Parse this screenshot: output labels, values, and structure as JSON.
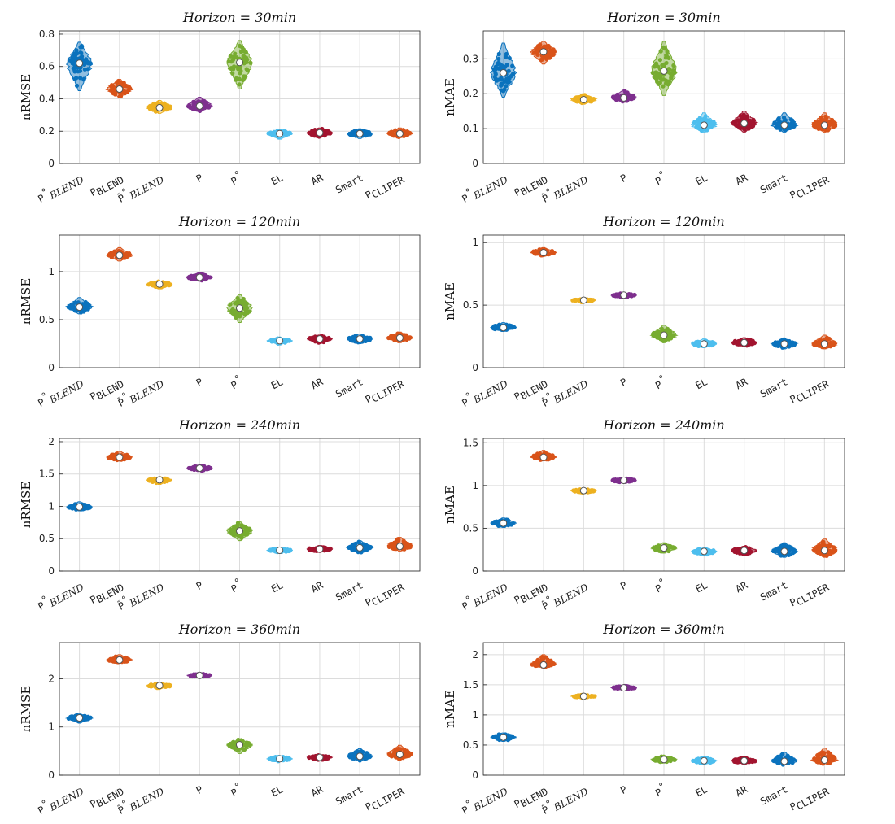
{
  "chart_data": [
    {
      "type": "violin",
      "title": "Horizon = 30min",
      "ylabel": "nRMSE",
      "ylim": [
        0,
        0.82
      ],
      "yticks": [
        "0",
        "0.2",
        "0.4",
        "0.6",
        "0.8"
      ],
      "ytick_values": [
        0,
        0.2,
        0.4,
        0.6,
        0.8
      ],
      "categories": [
        "P°BLEND",
        "PBLEND",
        "P̃°BLEND",
        "P",
        "P°",
        "EL",
        "AR",
        "Smart",
        "PCLIPER"
      ],
      "medians": [
        0.62,
        0.46,
        0.345,
        0.355,
        0.625,
        0.185,
        0.19,
        0.185,
        0.185
      ],
      "mins": [
        0.45,
        0.41,
        0.31,
        0.32,
        0.46,
        0.15,
        0.16,
        0.155,
        0.16
      ],
      "maxs": [
        0.75,
        0.52,
        0.39,
        0.41,
        0.76,
        0.21,
        0.22,
        0.215,
        0.22
      ]
    },
    {
      "type": "violin",
      "title": "Horizon = 30min",
      "ylabel": "nMAE",
      "ylim": [
        0,
        0.38
      ],
      "yticks": [
        "0",
        "0.1",
        "0.2",
        "0.3"
      ],
      "ytick_values": [
        0,
        0.1,
        0.2,
        0.3
      ],
      "categories": [
        "P°BLEND",
        "PBLEND",
        "P̃°BLEND",
        "P",
        "P°",
        "EL",
        "AR",
        "Smart",
        "PCLIPER"
      ],
      "medians": [
        0.26,
        0.32,
        0.183,
        0.188,
        0.265,
        0.11,
        0.115,
        0.11,
        0.11
      ],
      "mins": [
        0.19,
        0.285,
        0.17,
        0.175,
        0.195,
        0.09,
        0.09,
        0.09,
        0.09
      ],
      "maxs": [
        0.345,
        0.35,
        0.2,
        0.21,
        0.35,
        0.145,
        0.15,
        0.145,
        0.145
      ]
    },
    {
      "type": "violin",
      "title": "Horizon = 120min",
      "ylabel": "nRMSE",
      "ylim": [
        0,
        1.38
      ],
      "yticks": [
        "0",
        "0.5",
        "1"
      ],
      "ytick_values": [
        0,
        0.5,
        1
      ],
      "categories": [
        "P°BLEND",
        "PBLEND",
        "P̃°BLEND",
        "P",
        "P°",
        "EL",
        "AR",
        "Smart",
        "PCLIPER"
      ],
      "medians": [
        0.63,
        1.17,
        0.87,
        0.94,
        0.62,
        0.28,
        0.3,
        0.3,
        0.31
      ],
      "mins": [
        0.56,
        1.11,
        0.82,
        0.9,
        0.47,
        0.24,
        0.25,
        0.25,
        0.26
      ],
      "maxs": [
        0.73,
        1.25,
        0.9,
        0.99,
        0.76,
        0.31,
        0.34,
        0.35,
        0.37
      ]
    },
    {
      "type": "violin",
      "title": "Horizon = 120min",
      "ylabel": "nMAE",
      "ylim": [
        0,
        1.06
      ],
      "yticks": [
        "0",
        "0.5",
        "1"
      ],
      "ytick_values": [
        0,
        0.5,
        1
      ],
      "categories": [
        "P°BLEND",
        "PBLEND",
        "P̃°BLEND",
        "P",
        "P°",
        "EL",
        "AR",
        "Smart",
        "PCLIPER"
      ],
      "medians": [
        0.32,
        0.92,
        0.54,
        0.58,
        0.26,
        0.19,
        0.2,
        0.19,
        0.19
      ],
      "mins": [
        0.29,
        0.89,
        0.52,
        0.56,
        0.2,
        0.16,
        0.17,
        0.15,
        0.15
      ],
      "maxs": [
        0.36,
        0.96,
        0.55,
        0.6,
        0.34,
        0.23,
        0.24,
        0.23,
        0.26
      ]
    },
    {
      "type": "violin",
      "title": "Horizon = 240min",
      "ylabel": "nRMSE",
      "ylim": [
        0,
        2.05
      ],
      "yticks": [
        "0",
        "0.5",
        "1",
        "1.5",
        "2"
      ],
      "ytick_values": [
        0,
        0.5,
        1,
        1.5,
        2
      ],
      "categories": [
        "P°BLEND",
        "PBLEND",
        "P̃°BLEND",
        "P",
        "P°",
        "EL",
        "AR",
        "Smart",
        "PCLIPER"
      ],
      "medians": [
        0.99,
        1.76,
        1.41,
        1.59,
        0.62,
        0.32,
        0.34,
        0.36,
        0.38
      ],
      "mins": [
        0.93,
        1.7,
        1.34,
        1.54,
        0.47,
        0.28,
        0.29,
        0.28,
        0.31
      ],
      "maxs": [
        1.07,
        1.85,
        1.45,
        1.64,
        0.76,
        0.36,
        0.39,
        0.47,
        0.52
      ]
    },
    {
      "type": "violin",
      "title": "Horizon = 240min",
      "ylabel": "nMAE",
      "ylim": [
        0,
        1.55
      ],
      "yticks": [
        "0",
        "0.5",
        "1",
        "1.5"
      ],
      "ytick_values": [
        0,
        0.5,
        1,
        1.5
      ],
      "categories": [
        "P°BLEND",
        "PBLEND",
        "P̃°BLEND",
        "P",
        "P°",
        "EL",
        "AR",
        "Smart",
        "PCLIPER"
      ],
      "medians": [
        0.56,
        1.33,
        0.94,
        1.06,
        0.27,
        0.23,
        0.24,
        0.23,
        0.24
      ],
      "mins": [
        0.51,
        1.29,
        0.91,
        1.03,
        0.21,
        0.18,
        0.18,
        0.16,
        0.16
      ],
      "maxs": [
        0.62,
        1.41,
        0.96,
        1.09,
        0.33,
        0.27,
        0.29,
        0.33,
        0.38
      ]
    },
    {
      "type": "violin",
      "title": "Horizon = 360min",
      "ylabel": "nRMSE",
      "ylim": [
        0,
        2.75
      ],
      "yticks": [
        "0",
        "1",
        "2"
      ],
      "ytick_values": [
        0,
        1,
        2
      ],
      "categories": [
        "P°BLEND",
        "PBLEND",
        "P̃°BLEND",
        "P",
        "P°",
        "EL",
        "AR",
        "Smart",
        "PCLIPER"
      ],
      "medians": [
        1.19,
        2.39,
        1.86,
        2.07,
        0.63,
        0.34,
        0.37,
        0.39,
        0.43
      ],
      "mins": [
        1.08,
        2.32,
        1.79,
        2.02,
        0.45,
        0.28,
        0.3,
        0.29,
        0.32
      ],
      "maxs": [
        1.27,
        2.5,
        1.92,
        2.11,
        0.75,
        0.4,
        0.42,
        0.55,
        0.62
      ]
    },
    {
      "type": "violin",
      "title": "Horizon = 360min",
      "ylabel": "nMAE",
      "ylim": [
        0,
        2.2
      ],
      "yticks": [
        "0",
        "0.5",
        "1",
        "1.5",
        "2"
      ],
      "ytick_values": [
        0,
        0.5,
        1,
        1.5,
        2
      ],
      "categories": [
        "P°BLEND",
        "PBLEND",
        "P̃°BLEND",
        "P",
        "P°",
        "EL",
        "AR",
        "Smart",
        "PCLIPER"
      ],
      "medians": [
        0.63,
        1.83,
        1.31,
        1.45,
        0.26,
        0.24,
        0.24,
        0.23,
        0.25
      ],
      "mins": [
        0.56,
        1.79,
        1.28,
        1.42,
        0.2,
        0.18,
        0.18,
        0.17,
        0.17
      ],
      "maxs": [
        0.7,
        2.0,
        1.34,
        1.49,
        0.32,
        0.3,
        0.3,
        0.38,
        0.45
      ]
    }
  ],
  "colors": [
    "#0a72bd",
    "#d95319",
    "#edb120",
    "#7e2f8e",
    "#77ac30",
    "#4dbeee",
    "#a2142f",
    "#0a72bd",
    "#d95319"
  ]
}
